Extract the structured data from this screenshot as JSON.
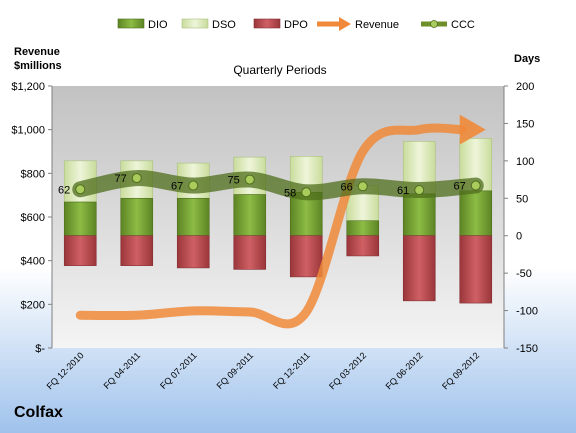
{
  "company": "Colfax",
  "chart_data": {
    "type": "bar",
    "title": "Quarterly Periods",
    "left_axis_title_line1": "Revenue",
    "left_axis_title_line2": "$millions",
    "right_axis_title": "Days",
    "left_ylim": [
      0,
      1200
    ],
    "left_ticks": [
      {
        "value": 0,
        "label": "$-"
      },
      {
        "value": 200,
        "label": "$200"
      },
      {
        "value": 400,
        "label": "$400"
      },
      {
        "value": 600,
        "label": "$600"
      },
      {
        "value": 800,
        "label": "$800"
      },
      {
        "value": 1000,
        "label": "$1,000"
      },
      {
        "value": 1200,
        "label": "$1,200"
      }
    ],
    "right_ylim": [
      -150,
      200
    ],
    "right_ticks": [
      -150,
      -100,
      -50,
      0,
      50,
      100,
      150,
      200
    ],
    "categories": [
      "FQ 12-2010",
      "FQ 04-2011",
      "FQ 07-2011",
      "FQ 09-2011",
      "FQ 12-2011",
      "FQ 03-2012",
      "FQ 06-2012",
      "FQ 09-2012"
    ],
    "legend": [
      "DIO",
      "DSO",
      "DPO",
      "Revenue",
      "CCC"
    ],
    "legend_position": "top",
    "grid": false,
    "series": [
      {
        "name": "DIO",
        "axis": "right",
        "color": "#6f9a2f",
        "values": [
          45,
          50,
          50,
          55,
          58,
          20,
          56,
          60
        ]
      },
      {
        "name": "DSO",
        "axis": "right",
        "color": "#d8e7b4",
        "values": [
          55,
          50,
          47,
          50,
          48,
          47,
          70,
          70
        ]
      },
      {
        "name": "DPO",
        "axis": "right",
        "color": "#b84a4e",
        "values": [
          -40,
          -40,
          -43,
          -45,
          -55,
          -27,
          -87,
          -90
        ]
      },
      {
        "name": "Revenue",
        "axis": "left",
        "color": "#f08a3a",
        "values": [
          150,
          150,
          170,
          165,
          165,
          900,
          1000,
          1000
        ]
      },
      {
        "name": "CCC",
        "axis": "right",
        "color": "#6f8f2a",
        "values": [
          62,
          77,
          67,
          75,
          58,
          66,
          61,
          67
        ]
      }
    ]
  }
}
